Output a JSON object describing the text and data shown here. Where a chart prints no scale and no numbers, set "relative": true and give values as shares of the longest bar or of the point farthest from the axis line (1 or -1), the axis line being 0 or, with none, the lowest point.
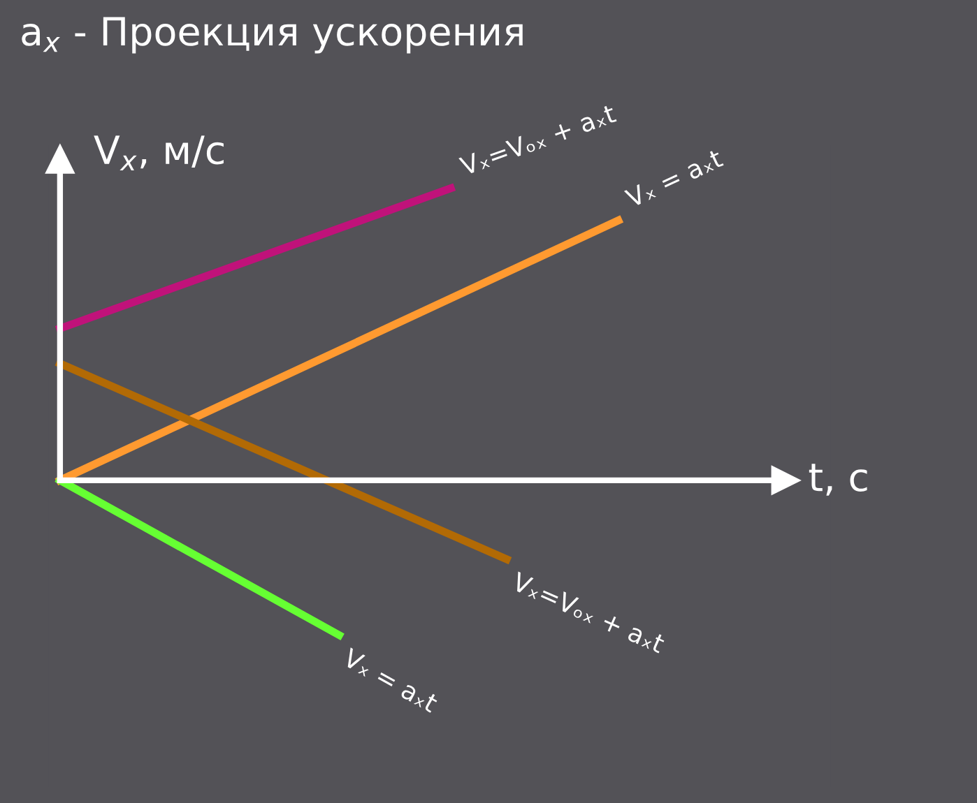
{
  "chart_data": {
    "type": "line",
    "title": "a$_{x}$ - Проекция ускорения",
    "xlabel": "t, с",
    "ylabel": "V$_{x}$, м/с",
    "relative": true,
    "legend": false,
    "marker": "none",
    "line_style": "solid",
    "categories": [
      null,
      null,
      null,
      null,
      null,
      null,
      null,
      null,
      null,
      null,
      null
    ],
    "series": [
      {
        "name": "Vₓ=Vₒₓ + aₓt",
        "color": "#c0127a",
        "values": [
          0.52,
          null,
          null,
          null,
          null,
          null,
          null,
          1.0,
          null,
          null,
          null
        ]
      },
      {
        "name": "Vₓ = aₓt",
        "color": "#ff9a30",
        "values": [
          0,
          null,
          null,
          null,
          null,
          null,
          null,
          null,
          null,
          null,
          0.89
        ]
      },
      {
        "name": "Vₓ=Vₒₓ + aₓt",
        "color": "#b26a05",
        "values": [
          0.4,
          null,
          null,
          null,
          null,
          null,
          null,
          null,
          -0.27,
          null,
          null
        ]
      },
      {
        "name": "Vₓ = aₓt",
        "color": "#66ff33",
        "values": [
          0,
          null,
          null,
          null,
          null,
          -0.53,
          null,
          null,
          null,
          null,
          null
        ]
      }
    ]
  }
}
